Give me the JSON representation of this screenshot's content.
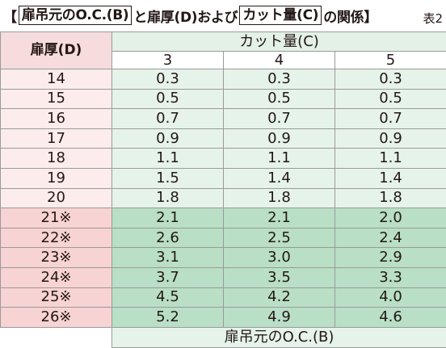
{
  "title": {
    "open_bracket": "【",
    "part1": "扉吊元のO.C.(B)",
    "part2": "と扉厚(D)および",
    "part3": "カット量(C)",
    "part4": "の関係",
    "close_bracket": "】",
    "table_no": "表2"
  },
  "header": {
    "thickness_label": "扉厚(D)",
    "cut_label": "カット量(C)",
    "cut_values": [
      "3",
      "4",
      "5"
    ]
  },
  "rows": [
    {
      "d": "14",
      "c3": "0.3",
      "c4": "0.3",
      "c5": "0.3",
      "emph": false
    },
    {
      "d": "15",
      "c3": "0.5",
      "c4": "0.5",
      "c5": "0.5",
      "emph": false
    },
    {
      "d": "16",
      "c3": "0.7",
      "c4": "0.7",
      "c5": "0.7",
      "emph": false
    },
    {
      "d": "17",
      "c3": "0.9",
      "c4": "0.9",
      "c5": "0.9",
      "emph": false
    },
    {
      "d": "18",
      "c3": "1.1",
      "c4": "1.1",
      "c5": "1.1",
      "emph": false
    },
    {
      "d": "19",
      "c3": "1.5",
      "c4": "1.4",
      "c5": "1.4",
      "emph": false
    },
    {
      "d": "20",
      "c3": "1.8",
      "c4": "1.8",
      "c5": "1.8",
      "emph": false
    },
    {
      "d": "21※",
      "c3": "2.1",
      "c4": "2.1",
      "c5": "2.0",
      "emph": true
    },
    {
      "d": "22※",
      "c3": "2.6",
      "c4": "2.5",
      "c5": "2.4",
      "emph": true
    },
    {
      "d": "23※",
      "c3": "3.1",
      "c4": "3.0",
      "c5": "2.9",
      "emph": true
    },
    {
      "d": "24※",
      "c3": "3.7",
      "c4": "3.5",
      "c5": "3.3",
      "emph": true
    },
    {
      "d": "25※",
      "c3": "4.5",
      "c4": "4.2",
      "c5": "4.0",
      "emph": true
    },
    {
      "d": "26※",
      "c3": "5.2",
      "c4": "4.9",
      "c5": "4.6",
      "emph": true
    }
  ],
  "footer": {
    "label": "扉吊元のO.C.(B)"
  }
}
